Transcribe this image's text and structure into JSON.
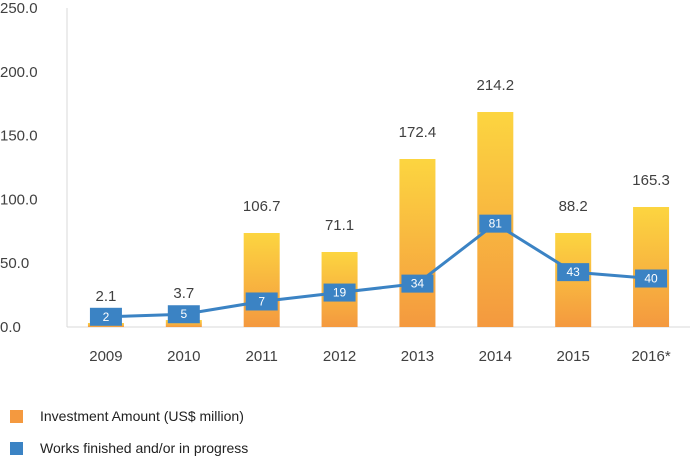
{
  "chart_data": {
    "type": "bar",
    "categories": [
      "2009",
      "2010",
      "2011",
      "2012",
      "2013",
      "2014",
      "2015",
      "2016*"
    ],
    "ylim": [
      0,
      250
    ],
    "yticks": [
      "0.0",
      "50.0",
      "100.0",
      "150.0",
      "200.0",
      "250.0"
    ],
    "series": [
      {
        "name": "Investment Amount (US$ million)",
        "type": "bar",
        "values": [
          2.1,
          3.7,
          106.7,
          71.1,
          172.4,
          214.2,
          88.2,
          165.3
        ],
        "bar_heights": [
          4,
          7,
          94,
          75,
          168,
          215,
          94,
          120
        ],
        "labels": [
          "2.1",
          "3.7",
          "106.7",
          "71.1",
          "172.4",
          "214.2",
          "88.2",
          "165.3"
        ],
        "color_top": "#fcd540",
        "color_bottom": "#f4993f"
      },
      {
        "name": "Works finished and/or in progress",
        "type": "line",
        "values": [
          2,
          5,
          7,
          19,
          34,
          81,
          43,
          40
        ],
        "plot_y": [
          8,
          10,
          20,
          27,
          34,
          81,
          43,
          38
        ],
        "labels": [
          "2",
          "5",
          "7",
          "19",
          "34",
          "81",
          "43",
          "40"
        ],
        "color": "#3b83c4"
      }
    ],
    "grid": false
  }
}
